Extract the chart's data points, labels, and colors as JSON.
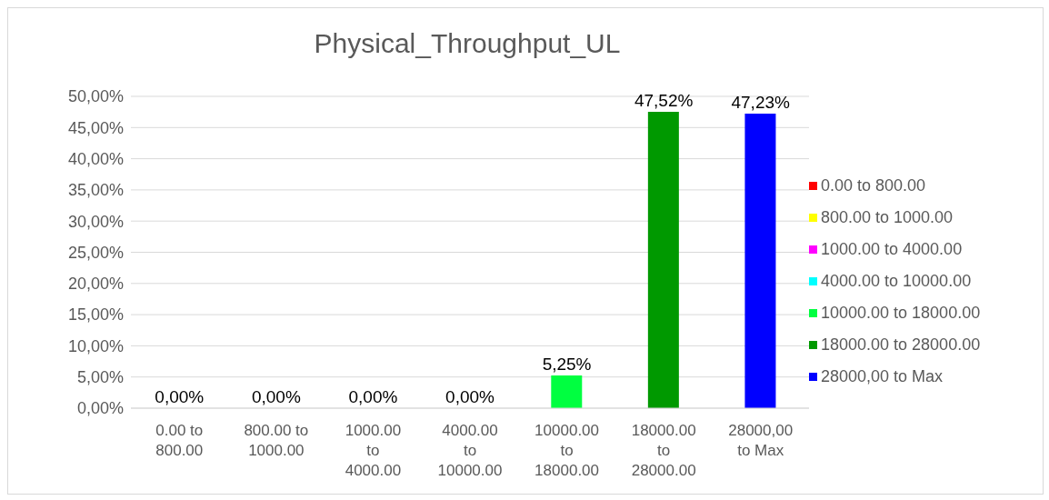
{
  "chart_data": {
    "type": "bar",
    "title": "Physical_Throughput_UL",
    "categories": [
      "0.00 to 800.00",
      "800.00 to 1000.00",
      "1000.00 to 4000.00",
      "4000.00 to 10000.00",
      "10000.00 to 18000.00",
      "18000.00 to 28000.00",
      "28000,00 to Max"
    ],
    "series": [
      {
        "name": "0.00 to 800.00",
        "color": "#ff0000",
        "values": [
          0,
          null,
          null,
          null,
          null,
          null,
          null
        ],
        "value_labels": [
          "0,00%",
          null,
          null,
          null,
          null,
          null,
          null
        ]
      },
      {
        "name": "800.00 to 1000.00",
        "color": "#ffff00",
        "values": [
          null,
          0,
          null,
          null,
          null,
          null,
          null
        ],
        "value_labels": [
          null,
          "0,00%",
          null,
          null,
          null,
          null,
          null
        ]
      },
      {
        "name": "1000.00 to 4000.00",
        "color": "#ff00ff",
        "values": [
          null,
          null,
          0,
          null,
          null,
          null,
          null
        ],
        "value_labels": [
          null,
          null,
          "0,00%",
          null,
          null,
          null,
          null
        ]
      },
      {
        "name": "4000.00 to 10000.00",
        "color": "#00ffff",
        "values": [
          null,
          null,
          null,
          0,
          null,
          null,
          null
        ],
        "value_labels": [
          null,
          null,
          null,
          "0,00%",
          null,
          null,
          null
        ]
      },
      {
        "name": "10000.00 to 18000.00",
        "color": "#00ff40",
        "values": [
          null,
          null,
          null,
          null,
          5.25,
          null,
          null
        ],
        "value_labels": [
          null,
          null,
          null,
          null,
          "5,25%",
          null,
          null
        ]
      },
      {
        "name": "18000.00 to 28000.00",
        "color": "#009900",
        "values": [
          null,
          null,
          null,
          null,
          null,
          47.52,
          null
        ],
        "value_labels": [
          null,
          null,
          null,
          null,
          null,
          "47,52%",
          null
        ]
      },
      {
        "name": "28000,00 to Max",
        "color": "#0000ff",
        "values": [
          null,
          null,
          null,
          null,
          null,
          null,
          47.23
        ],
        "value_labels": [
          null,
          null,
          null,
          null,
          null,
          null,
          "47,23%"
        ]
      }
    ],
    "stacked": true,
    "ylim": [
      0,
      50
    ],
    "yticks": [
      {
        "value": 0,
        "label": "0,00%"
      },
      {
        "value": 5,
        "label": "5,00%"
      },
      {
        "value": 10,
        "label": "10,00%"
      },
      {
        "value": 15,
        "label": "15,00%"
      },
      {
        "value": 20,
        "label": "20,00%"
      },
      {
        "value": 25,
        "label": "25,00%"
      },
      {
        "value": 30,
        "label": "30,00%"
      },
      {
        "value": 35,
        "label": "35,00%"
      },
      {
        "value": 40,
        "label": "40,00%"
      },
      {
        "value": 45,
        "label": "45,00%"
      },
      {
        "value": 50,
        "label": "50,00%"
      }
    ],
    "grid": "y",
    "legend": "right"
  }
}
